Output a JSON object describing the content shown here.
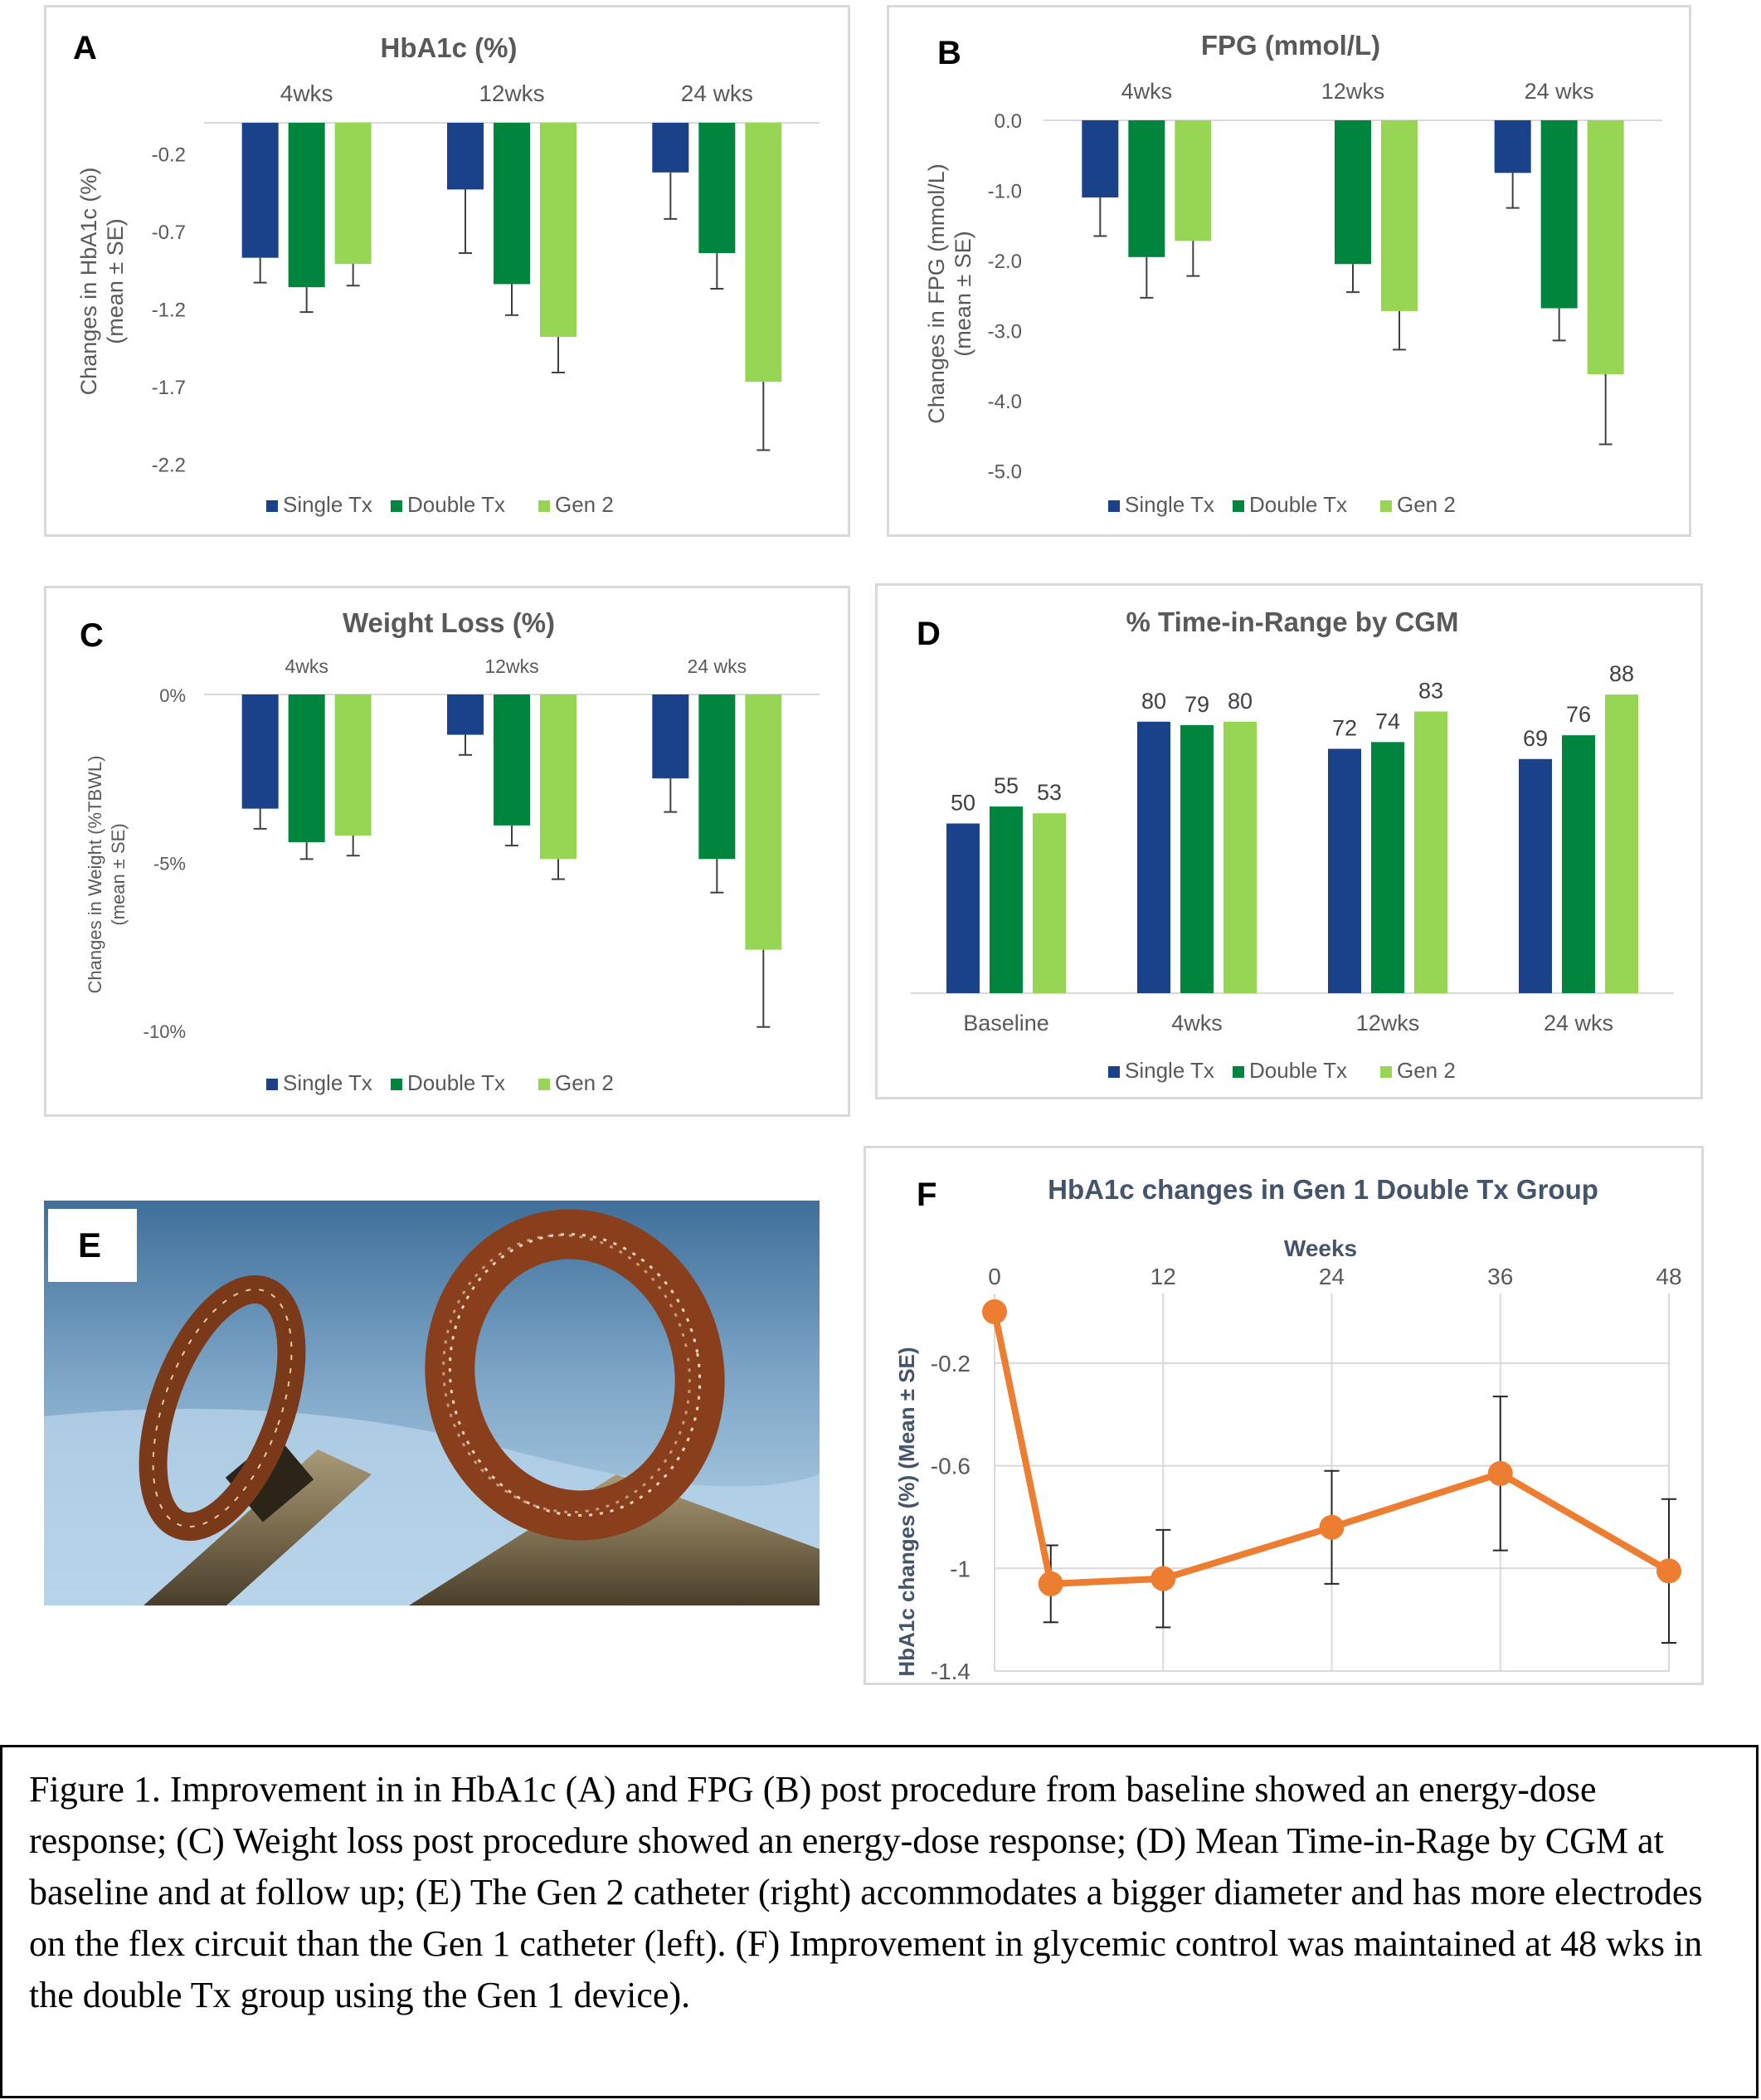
{
  "colors": {
    "single": "#1a428a",
    "double": "#00853f",
    "gen2": "#97d654",
    "line": "#ed7d31",
    "axisText": "#595959",
    "titleF": "#44546a"
  },
  "legend": [
    "Single Tx",
    "Double Tx",
    "Gen 2"
  ],
  "panels": {
    "A": {
      "letter": "A",
      "title": "HbA1c (%)",
      "ylabel_line1": "Changes in HbA1c (%)",
      "ylabel_line2": "(mean ± SE)"
    },
    "B": {
      "letter": "B",
      "title": "FPG (mmol/L)",
      "ylabel_line1": "Changes in FPG (mmol/L)",
      "ylabel_line2": "(mean ± SE)"
    },
    "C": {
      "letter": "C",
      "title": "Weight Loss (%)",
      "ylabel_line1": "Changes in Weight (%TBWL)",
      "ylabel_line2": "(mean ± SE)"
    },
    "D": {
      "letter": "D",
      "title": "%  Time-in-Range by CGM"
    },
    "E": {
      "letter": "E",
      "image": "gen1-and-gen2-catheters-photo"
    },
    "F": {
      "letter": "F",
      "title": "HbA1c changes in Gen 1 Double Tx Group",
      "xlabel": "Weeks",
      "ylabel": "HbA1c changes (%) (Mean ± SE)"
    }
  },
  "chart_data": [
    {
      "panel": "A",
      "type": "bar",
      "title": "HbA1c (%)",
      "categories": [
        "4wks",
        "12wks",
        "24 wks"
      ],
      "ylabel": "Changes in HbA1c (%) (mean ± SE)",
      "ylim": [
        -2.3,
        0.0
      ],
      "yticks": [
        -0.2,
        -0.7,
        -1.2,
        -1.7,
        -2.2
      ],
      "ytick_labels": [
        "-0.2",
        "-0.7",
        "-1.2",
        "-1.7",
        "-2.2"
      ],
      "series": [
        {
          "name": "Single Tx",
          "values": [
            -0.87,
            -0.43,
            -0.32
          ],
          "err": [
            0.16,
            0.41,
            0.3
          ]
        },
        {
          "name": "Double Tx",
          "values": [
            -1.06,
            -1.04,
            -0.84
          ],
          "err": [
            0.16,
            0.2,
            0.23
          ]
        },
        {
          "name": "Gen 2",
          "values": [
            -0.91,
            -1.38,
            -1.67
          ],
          "err": [
            0.14,
            0.23,
            0.44
          ]
        }
      ],
      "legend_position": "bottom",
      "grid": false
    },
    {
      "panel": "B",
      "type": "bar",
      "title": "FPG (mmol/L)",
      "categories": [
        "4wks",
        "12wks",
        "24 wks"
      ],
      "ylabel": "Changes in FPG (mmol/L) (mean ± SE)",
      "ylim": [
        -5.3,
        0.0
      ],
      "yticks": [
        0.0,
        -1.0,
        -2.0,
        -3.0,
        -4.0,
        -5.0
      ],
      "ytick_labels": [
        "0.0",
        "-1.0",
        "-2.0",
        "-3.0",
        "-4.0",
        "-5.0"
      ],
      "series": [
        {
          "name": "Single Tx",
          "values": [
            -1.1,
            null,
            -0.75
          ],
          "err": [
            0.55,
            null,
            0.5
          ]
        },
        {
          "name": "Double Tx",
          "values": [
            -1.95,
            -2.05,
            -2.68
          ],
          "err": [
            0.58,
            0.4,
            0.46
          ]
        },
        {
          "name": "Gen 2",
          "values": [
            -1.72,
            -2.72,
            -3.62
          ],
          "err": [
            0.5,
            0.55,
            1.0
          ]
        }
      ],
      "legend_position": "bottom",
      "grid": false
    },
    {
      "panel": "C",
      "type": "bar",
      "title": "Weight Loss (%)",
      "categories": [
        "4wks",
        "12wks",
        "24 wks"
      ],
      "ylabel": "Changes in Weight (%TBWL) (mean ± SE)",
      "ylim": [
        -10.5,
        0.0
      ],
      "yticks": [
        0,
        -5,
        -10
      ],
      "ytick_labels": [
        "0%",
        "-5%",
        "-10%"
      ],
      "series": [
        {
          "name": "Single Tx",
          "values": [
            -3.4,
            -1.2,
            -2.5
          ],
          "err": [
            0.6,
            0.6,
            1.0
          ]
        },
        {
          "name": "Double Tx",
          "values": [
            -4.4,
            -3.9,
            -4.9
          ],
          "err": [
            0.5,
            0.6,
            1.0
          ]
        },
        {
          "name": "Gen 2",
          "values": [
            -4.2,
            -4.9,
            -7.6
          ],
          "err": [
            0.6,
            0.6,
            2.3
          ]
        }
      ],
      "legend_position": "bottom",
      "grid": false
    },
    {
      "panel": "D",
      "type": "bar",
      "title": "%  Time-in-Range by CGM",
      "categories": [
        "Baseline",
        "4wks",
        "12wks",
        "24 wks"
      ],
      "ylim": [
        0,
        100
      ],
      "series": [
        {
          "name": "Single Tx",
          "values": [
            50,
            80,
            72,
            69
          ]
        },
        {
          "name": "Double Tx",
          "values": [
            55,
            79,
            74,
            76
          ]
        },
        {
          "name": "Gen 2",
          "values": [
            53,
            80,
            83,
            88
          ]
        }
      ],
      "data_labels": true,
      "legend_position": "bottom",
      "grid": false
    },
    {
      "panel": "F",
      "type": "line",
      "title": "HbA1c changes in Gen 1 Double Tx Group",
      "xlabel": "Weeks",
      "ylabel": "HbA1c changes (%) (Mean ± SE)",
      "xlim": [
        0,
        48
      ],
      "xticks": [
        0,
        12,
        24,
        36,
        48
      ],
      "x_axis_position": "top",
      "ylim": [
        -1.4,
        0.0
      ],
      "yticks": [
        -0.2,
        -0.6,
        -1,
        -1.4
      ],
      "ytick_labels": [
        "-0.2",
        "-0.6",
        "-1",
        "-1.4"
      ],
      "series": [
        {
          "x": [
            0,
            4,
            12,
            24,
            36,
            48
          ],
          "values": [
            0.0,
            -1.06,
            -1.04,
            -0.84,
            -0.63,
            -1.01
          ],
          "err": [
            0.0,
            0.15,
            0.19,
            0.22,
            0.3,
            0.28
          ]
        }
      ],
      "grid": true
    }
  ],
  "caption": "Figure 1. Improvement in in HbA1c (A) and FPG (B) post procedure from baseline showed an energy-dose response; (C) Weight loss post procedure showed an energy-dose response; (D) Mean Time-in-Rage by CGM at baseline and at follow up; (E) The Gen 2 catheter (right) accommodates a bigger diameter and has more electrodes on the flex circuit than the Gen 1 catheter (left). (F) Improvement in glycemic control was maintained at 48 wks in the double Tx group using the Gen 1 device)."
}
